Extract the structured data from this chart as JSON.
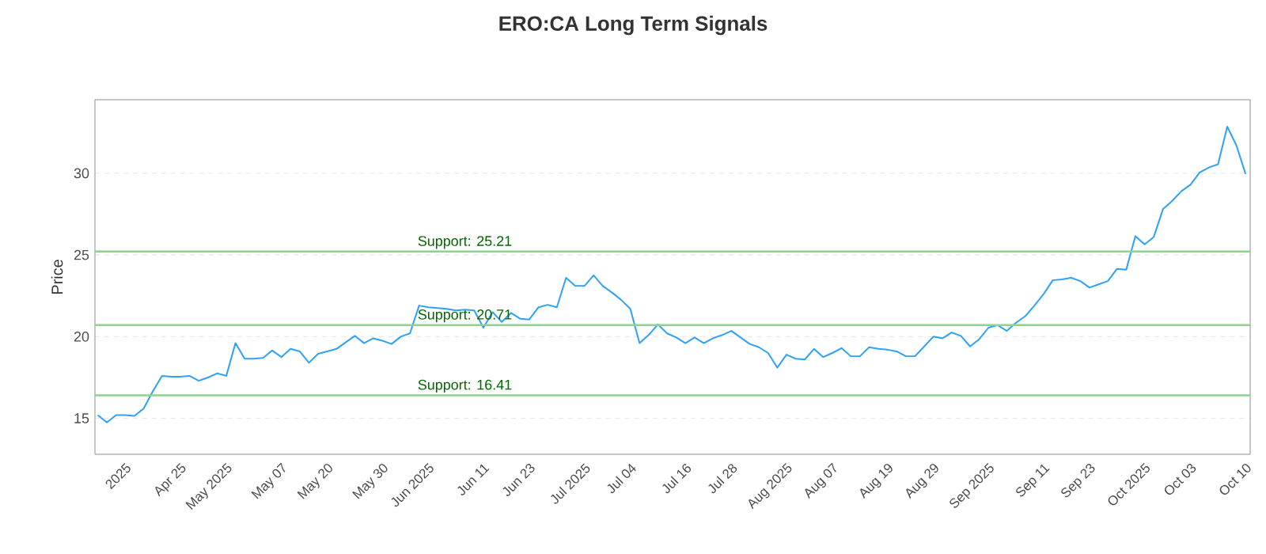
{
  "chart_data": {
    "type": "line",
    "title": "ERO:CA Long Term Signals",
    "ylabel": "Price",
    "categories": [
      null,
      null,
      null,
      "2025",
      null,
      null,
      null,
      null,
      null,
      "Apr 25",
      null,
      null,
      null,
      null,
      "May 2025",
      null,
      null,
      null,
      null,
      null,
      "May 07",
      null,
      null,
      null,
      null,
      "May 20",
      null,
      null,
      null,
      null,
      null,
      "May 30",
      null,
      null,
      null,
      null,
      "Jun 2025",
      null,
      null,
      null,
      null,
      null,
      "Jun 11",
      null,
      null,
      null,
      null,
      "Jun 23",
      null,
      null,
      null,
      null,
      null,
      "Jul 2025",
      null,
      null,
      null,
      null,
      "Jul 04",
      null,
      null,
      null,
      null,
      null,
      "Jul 16",
      null,
      null,
      null,
      null,
      "Jul 28",
      null,
      null,
      null,
      null,
      null,
      "Aug 2025",
      null,
      null,
      null,
      null,
      "Aug 07",
      null,
      null,
      null,
      null,
      null,
      "Aug 19",
      null,
      null,
      null,
      null,
      "Aug 29",
      null,
      null,
      null,
      null,
      null,
      "Sep 2025",
      null,
      null,
      null,
      null,
      null,
      "Sep 11",
      null,
      null,
      null,
      null,
      "Sep 23",
      null,
      null,
      null,
      null,
      null,
      "Oct 2025",
      null,
      null,
      null,
      null,
      "Oct 03",
      null,
      null,
      null,
      null,
      null,
      "Oct 10"
    ],
    "series": [
      {
        "color": "#2ea1f8",
        "values": [
          15.2,
          14.75,
          15.2,
          15.2,
          15.15,
          15.6,
          16.65,
          17.6,
          17.55,
          17.55,
          17.6,
          17.3,
          17.5,
          17.75,
          17.6,
          19.6,
          18.65,
          18.65,
          18.7,
          19.15,
          18.75,
          19.25,
          19.1,
          18.4,
          18.95,
          19.1,
          19.25,
          19.65,
          20.05,
          19.6,
          19.9,
          19.75,
          19.55,
          20.0,
          20.2,
          21.9,
          21.8,
          21.75,
          21.7,
          21.6,
          21.65,
          21.6,
          20.55,
          21.5,
          20.9,
          21.45,
          21.1,
          21.05,
          21.8,
          21.95,
          21.8,
          23.6,
          23.1,
          23.1,
          23.75,
          23.1,
          22.7,
          22.25,
          21.7,
          19.6,
          20.1,
          20.75,
          20.2,
          19.95,
          19.6,
          19.95,
          19.6,
          19.9,
          20.1,
          20.35,
          19.95,
          19.55,
          19.35,
          19.0,
          18.1,
          18.9,
          18.65,
          18.6,
          19.25,
          18.75,
          19.0,
          19.3,
          18.8,
          18.8,
          19.35,
          19.25,
          19.2,
          19.1,
          18.8,
          18.8,
          19.4,
          20.0,
          19.9,
          20.25,
          20.05,
          19.4,
          19.85,
          20.55,
          20.7,
          20.35,
          20.85,
          21.25,
          21.9,
          22.6,
          23.45,
          23.5,
          23.6,
          23.4,
          23.0,
          23.2,
          23.4,
          24.15,
          24.1,
          26.15,
          25.65,
          26.1,
          27.8,
          28.3,
          28.9,
          29.3,
          30.05,
          30.35,
          30.55,
          32.85,
          31.7,
          29.95
        ]
      }
    ],
    "ylim": [
      12.8,
      34.5
    ],
    "yticks": [
      15,
      20,
      25,
      30
    ],
    "grid": "y",
    "ref_lines": [
      {
        "axis": "y",
        "value": 25.21,
        "label": "Support: 25.21",
        "color": "#8fd18f"
      },
      {
        "axis": "y",
        "value": 20.71,
        "label": "Support: 20.71",
        "color": "#8fd18f"
      },
      {
        "axis": "y",
        "value": 16.41,
        "label": "Support: 16.41",
        "color": "#8fd18f"
      }
    ]
  }
}
